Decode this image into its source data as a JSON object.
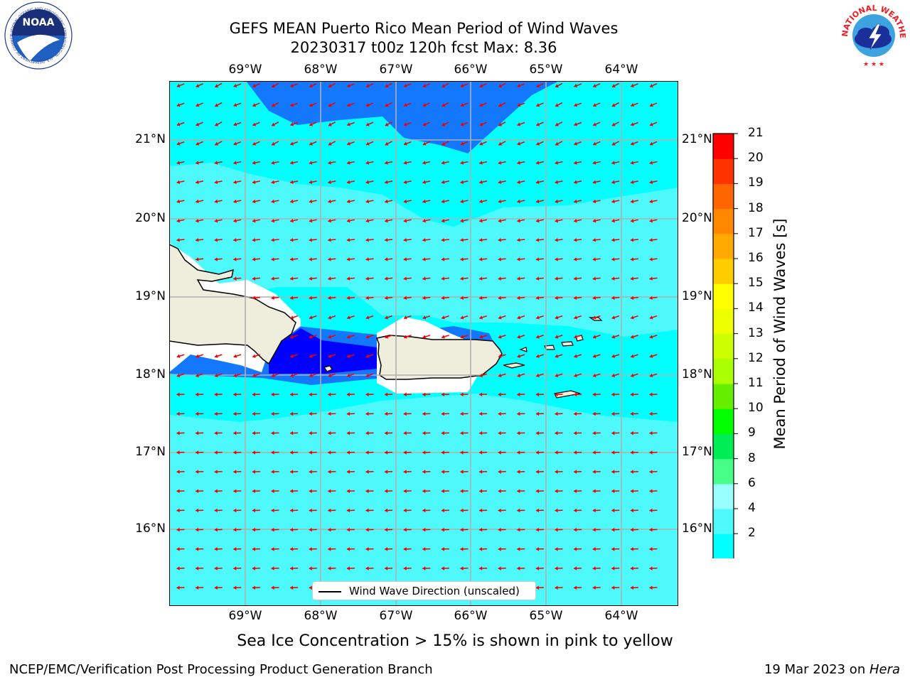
{
  "title_line1": "GEFS MEAN Puerto Rico Mean Period of Wind Waves",
  "title_line2": "20230317 t00z 120h fcst   Max: 8.36",
  "lon_labels": [
    "69°W",
    "68°W",
    "67°W",
    "66°W",
    "65°W",
    "64°W"
  ],
  "lat_labels": [
    "21°N",
    "20°N",
    "19°N",
    "18°N",
    "17°N",
    "16°N"
  ],
  "legend_label": "Wind Wave Direction (unscaled)",
  "colorbar": {
    "title": "Mean Period of Wind Waves [s]",
    "ticks": [
      "21",
      "20",
      "19",
      "18",
      "17",
      "16",
      "15",
      "14",
      "13",
      "12",
      "11",
      "10",
      "9",
      "8",
      "6",
      "4",
      "2"
    ],
    "colors": [
      "#0000ff",
      "#0066ff",
      "#00ffff",
      "#4df9fb",
      "#99ffff",
      "#47ff88",
      "#00ee55",
      "#00ff00",
      "#66ee00",
      "#aaff00",
      "#ccff00",
      "#eeff00",
      "#ffff00",
      "#ffcc00",
      "#ffaa00",
      "#ff8800",
      "#ff6600",
      "#ff3300",
      "#ff0000"
    ]
  },
  "map_colors": {
    "ocean": "#4df9fb",
    "cyan": "#00ffff",
    "blue": "#1478ff",
    "deep_blue": "#0000ff",
    "land": "#efeddc",
    "arrow": "#ee0000"
  },
  "sea_ice_note": "Sea Ice Concentration > 15% is shown in pink to yellow",
  "footer_left": "NCEP/EMC/Verification Post Processing Product Generation Branch",
  "footer_right_date": "19 Mar 2023 on ",
  "footer_right_machine": "Hera",
  "logo_left": "NOAA",
  "logo_left_ring": "NATIONAL OCEANIC AND ATMOSPHERIC ADMINISTRATION · U.S. DEPARTMENT OF COMMERCE",
  "logo_right_ring": "NATIONAL WEATHER SERVICE"
}
